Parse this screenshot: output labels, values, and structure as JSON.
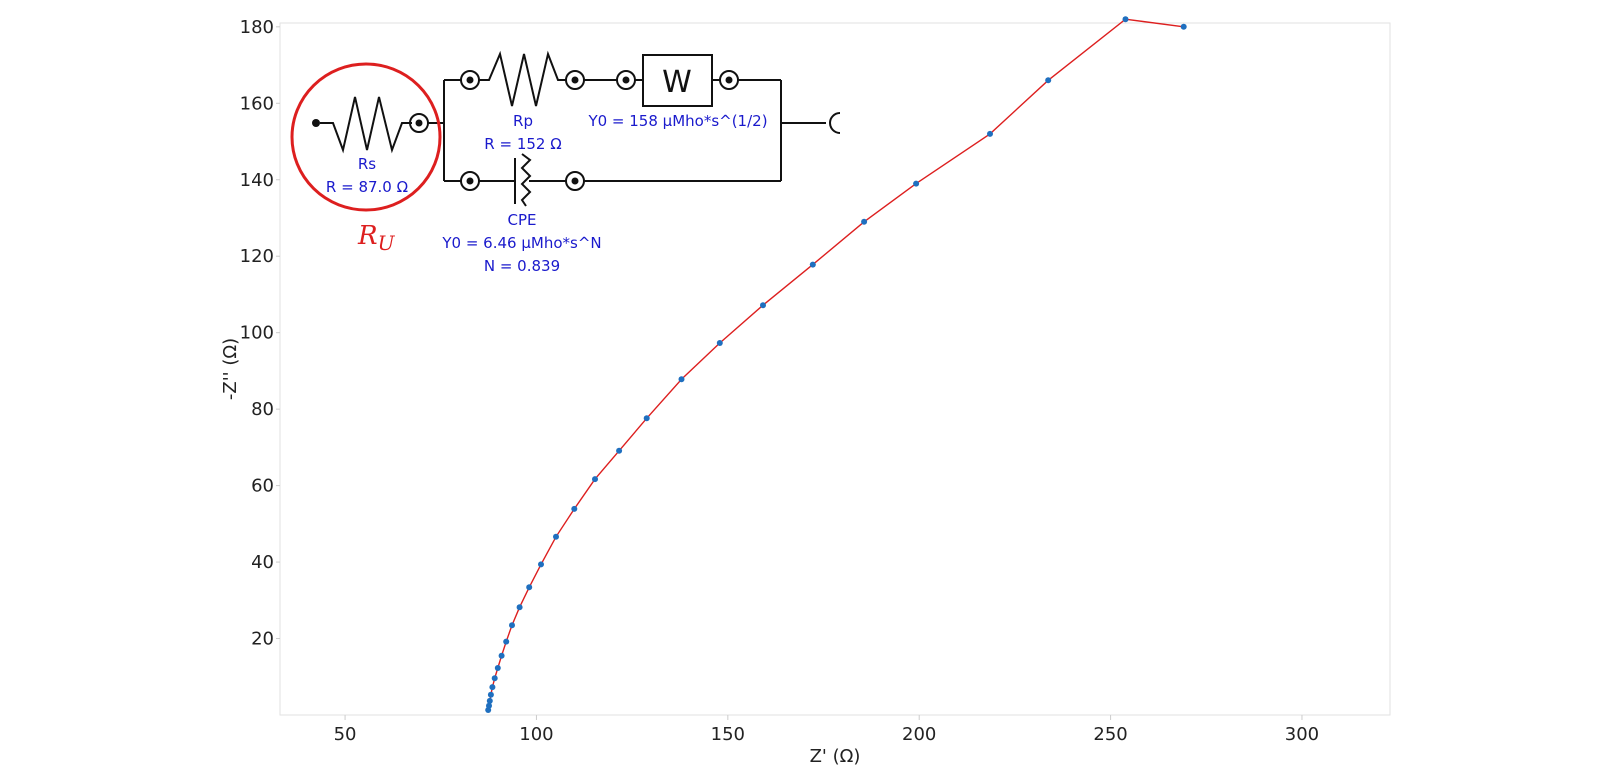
{
  "chart_data": {
    "type": "scatter",
    "title": "",
    "xlabel": "Z' (Ω)",
    "ylabel": "-Z'' (Ω)",
    "xlim": [
      33,
      323
    ],
    "ylim": [
      0,
      181
    ],
    "x_ticks": [
      50,
      100,
      150,
      200,
      250,
      300
    ],
    "y_ticks": [
      20,
      40,
      60,
      80,
      100,
      120,
      140,
      160,
      180
    ],
    "grid": false,
    "series": [
      {
        "name": "",
        "color": "#1f6fbf",
        "marker": "circle",
        "x": [
          87.4,
          87.6,
          87.8,
          88.1,
          88.5,
          89.1,
          89.9,
          90.9,
          92.1,
          93.6,
          95.6,
          98.1,
          101.2,
          105.1,
          109.9,
          115.3,
          121.6,
          128.8,
          137.9,
          147.9,
          159.2,
          172.2,
          185.6,
          199.2,
          218.5,
          233.7,
          253.9,
          269.1
        ],
        "y": [
          1.3,
          2.4,
          3.7,
          5.3,
          7.3,
          9.6,
          12.3,
          15.5,
          19.2,
          23.5,
          28.2,
          33.4,
          39.4,
          46.6,
          53.9,
          61.7,
          69.1,
          77.6,
          87.8,
          97.3,
          107.2,
          117.8,
          129.0,
          139.0,
          152.0,
          166.0,
          182.0,
          180.0
        ]
      }
    ],
    "fit_line": {
      "color": "#dd1f1f"
    }
  },
  "circuit": {
    "rs": {
      "name": "Rs",
      "value": "R = 87.0 Ω"
    },
    "rp": {
      "name": "Rp",
      "value": "R = 152 Ω"
    },
    "w": {
      "symbol": "W",
      "value": "Y0 = 158 µMho*s^(1/2)"
    },
    "cpe": {
      "name": "CPE",
      "value1": "Y0 = 6.46 µMho*s^N",
      "value2": "N = 0.839"
    },
    "highlight_label": "R",
    "highlight_subscript": "U",
    "highlight_color": "#dd1f1f",
    "text_color": "#1a1acc"
  }
}
